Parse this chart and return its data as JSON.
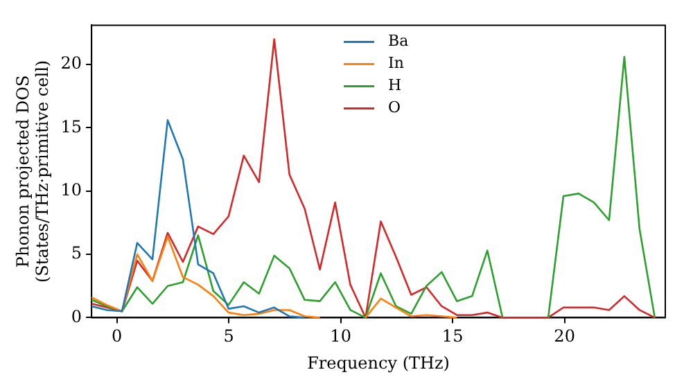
{
  "chart_data": {
    "type": "line",
    "xlabel": "Frequency (THz)",
    "ylabel": "Phonon projected DOS\n(States/THz·primitive cell)",
    "x": [
      -1.13,
      -0.45,
      0.23,
      0.91,
      1.59,
      2.27,
      2.95,
      3.63,
      4.31,
      4.99,
      5.67,
      6.35,
      7.03,
      7.71,
      8.39,
      9.07,
      9.75,
      10.43,
      11.11,
      11.79,
      12.47,
      13.15,
      13.83,
      14.51,
      15.19,
      15.87,
      16.55,
      17.23,
      17.91,
      18.59,
      19.27,
      19.95,
      20.63,
      21.31,
      21.99,
      22.67,
      23.35,
      24.03
    ],
    "series": [
      {
        "name": "Ba",
        "color": "#1f77b4",
        "values": [
          0.9,
          0.6,
          0.5,
          5.9,
          4.6,
          15.6,
          12.5,
          4.2,
          3.5,
          0.7,
          0.9,
          0.4,
          0.8,
          0.1,
          0,
          null,
          null,
          null,
          null,
          null,
          null,
          null,
          null,
          null,
          null,
          null,
          null,
          null,
          null,
          null,
          null,
          null,
          null,
          null,
          null,
          null,
          null,
          null
        ]
      },
      {
        "name": "In",
        "color": "#ff7f0e",
        "values": [
          1.6,
          1.0,
          0.5,
          5.0,
          2.9,
          6.4,
          3.2,
          2.6,
          1.7,
          0.4,
          0.2,
          0.3,
          0.6,
          0.6,
          0.1,
          0,
          null,
          null,
          0,
          1.5,
          0.8,
          0.1,
          0.2,
          0.1,
          0,
          null,
          null,
          null,
          null,
          null,
          null,
          null,
          null,
          null,
          null,
          null,
          null,
          null
        ]
      },
      {
        "name": "H",
        "color": "#2ca02c",
        "values": [
          1.4,
          0.9,
          0.5,
          2.4,
          1.1,
          2.5,
          2.8,
          6.5,
          2.1,
          1.0,
          2.8,
          1.9,
          4.9,
          3.9,
          1.4,
          1.3,
          2.8,
          0.6,
          0,
          3.5,
          0.9,
          0.3,
          2.5,
          3.6,
          1.3,
          1.7,
          5.3,
          0,
          null,
          null,
          0,
          9.6,
          9.8,
          9.1,
          7.7,
          20.6,
          7.0,
          0
        ]
      },
      {
        "name": "O",
        "color": "#d62728",
        "values": [
          1.1,
          0.8,
          0.5,
          4.5,
          2.9,
          6.7,
          4.4,
          7.2,
          6.6,
          8.0,
          12.8,
          10.7,
          22.0,
          11.3,
          8.6,
          3.8,
          9.1,
          2.6,
          0,
          7.6,
          4.8,
          1.8,
          2.4,
          0.9,
          0.2,
          0.2,
          0.4,
          0,
          0,
          0,
          0,
          0.8,
          0.8,
          0.8,
          0.6,
          1.7,
          0.6,
          0
        ]
      }
    ],
    "xlim": [
      -1.13,
      24.5
    ],
    "ylim": [
      0,
      23.1
    ],
    "xticks": [
      0,
      5,
      10,
      15,
      20
    ],
    "yticks": [
      0,
      5,
      10,
      15,
      20
    ],
    "grid": false,
    "legend": "top",
    "marker": "none",
    "line_style": "solid"
  }
}
